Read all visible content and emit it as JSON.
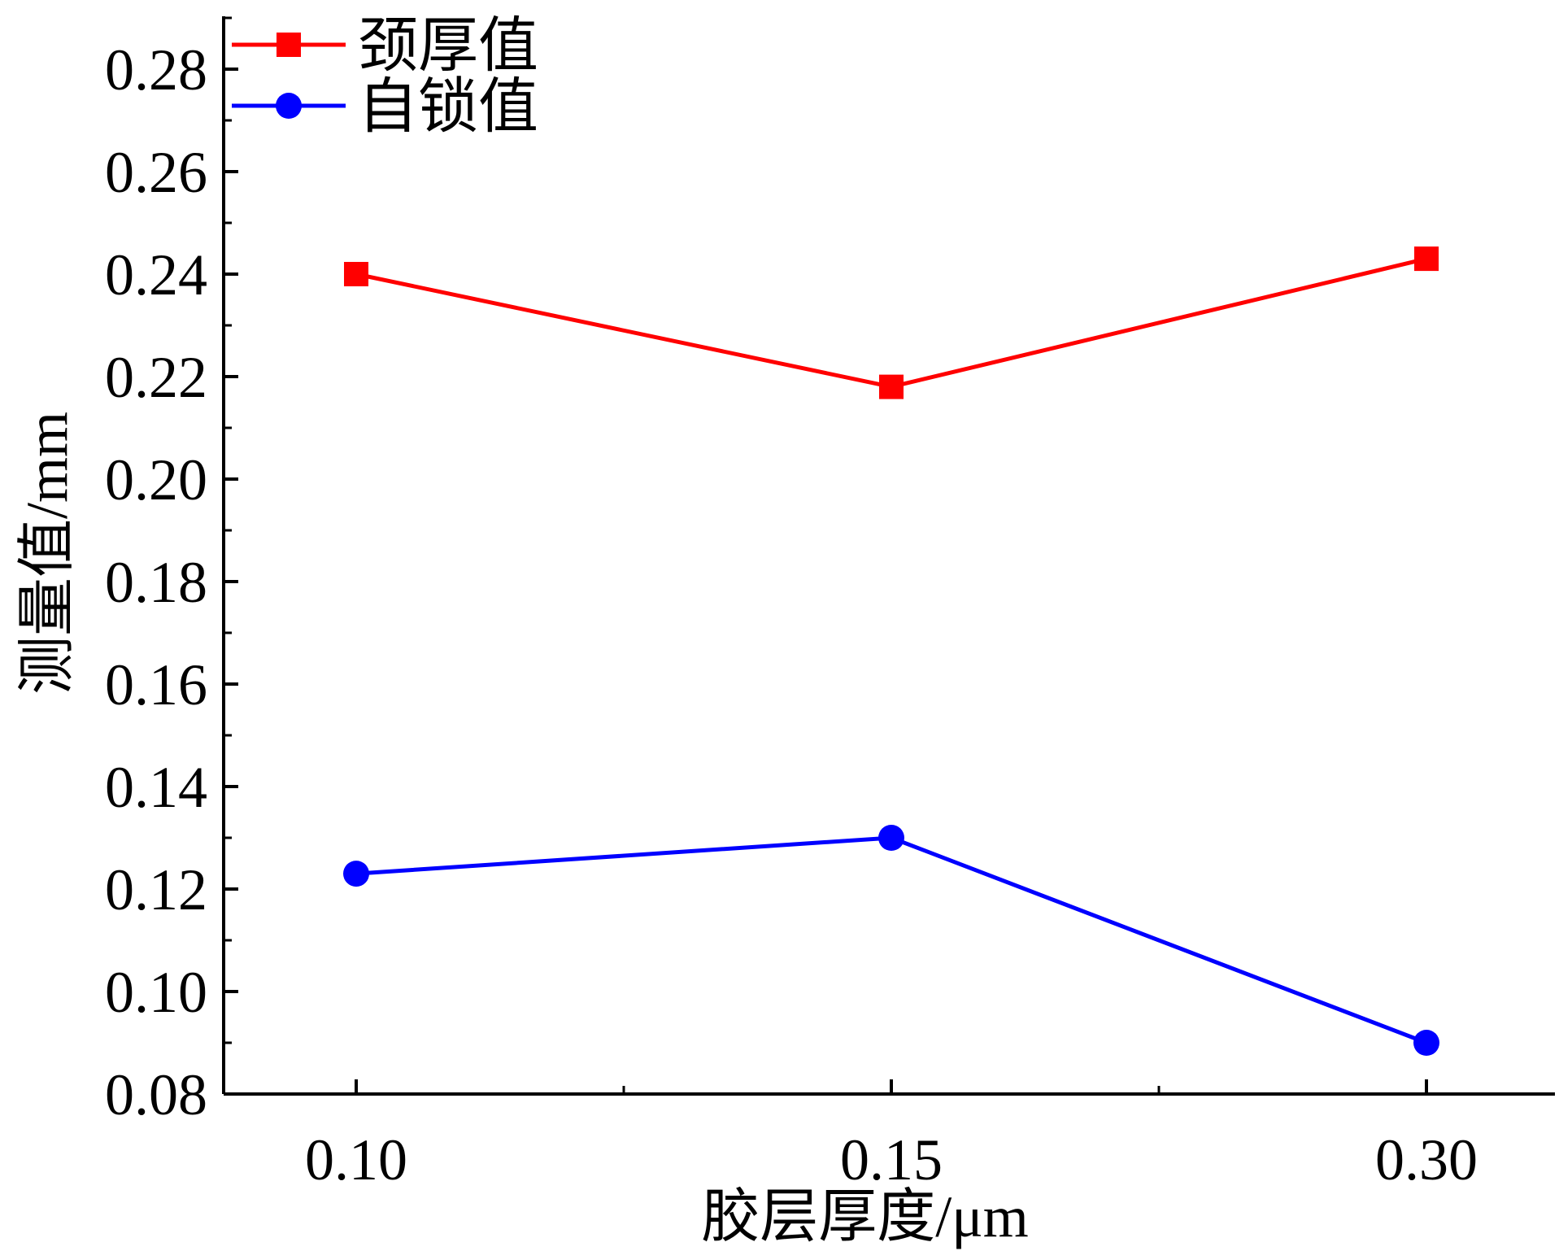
{
  "chart_data": {
    "type": "line",
    "categories": [
      "0.10",
      "0.15",
      "0.30"
    ],
    "xlabel": "胶层厚度/μm",
    "ylabel": "测量值/mm",
    "ylim": [
      0.08,
      0.29
    ],
    "yticks": [
      "0.08",
      "0.10",
      "0.12",
      "0.14",
      "0.16",
      "0.18",
      "0.20",
      "0.22",
      "0.24",
      "0.26",
      "0.28"
    ],
    "grid": false,
    "legend_position": "top-left",
    "series": [
      {
        "name": "颈厚值",
        "values": [
          0.24,
          0.218,
          0.243
        ],
        "color": "#ff0000",
        "marker": "square"
      },
      {
        "name": "自锁值",
        "values": [
          0.123,
          0.13,
          0.09
        ],
        "color": "#0000ff",
        "marker": "circle"
      }
    ]
  }
}
